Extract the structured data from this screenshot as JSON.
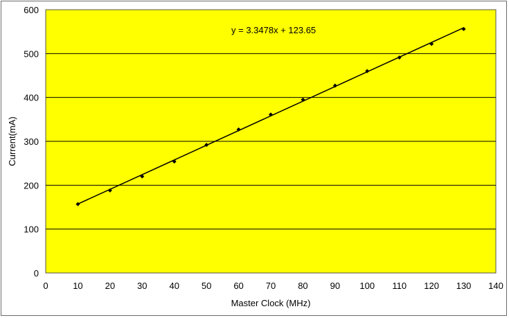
{
  "chart_data": {
    "type": "scatter",
    "title": "",
    "xlabel": "Master Clock (MHz)",
    "ylabel": "Current(mA)",
    "xlim": [
      0,
      140
    ],
    "ylim": [
      0,
      600
    ],
    "xticks": [
      0,
      10,
      20,
      30,
      40,
      50,
      60,
      70,
      80,
      90,
      100,
      110,
      120,
      130,
      140
    ],
    "yticks": [
      0,
      100,
      200,
      300,
      400,
      500,
      600
    ],
    "grid": "horizontal",
    "series": [
      {
        "x": [
          10,
          20,
          30,
          40,
          50,
          60,
          70,
          80,
          90,
          100,
          110,
          120,
          130
        ],
        "y": [
          157,
          188,
          220,
          254,
          292,
          327,
          361,
          395,
          427,
          460,
          491,
          522,
          556
        ]
      }
    ],
    "trendline": {
      "type": "linear",
      "slope": 3.3478,
      "intercept": 123.65,
      "label": "y = 3.3478x + 123.65",
      "x_range": [
        10,
        130
      ]
    },
    "colors": {
      "plot_background": "#ffff00",
      "gridline": "#000000",
      "marker": "#000000",
      "line": "#000000",
      "frame_border": "#6b6b6b"
    }
  }
}
